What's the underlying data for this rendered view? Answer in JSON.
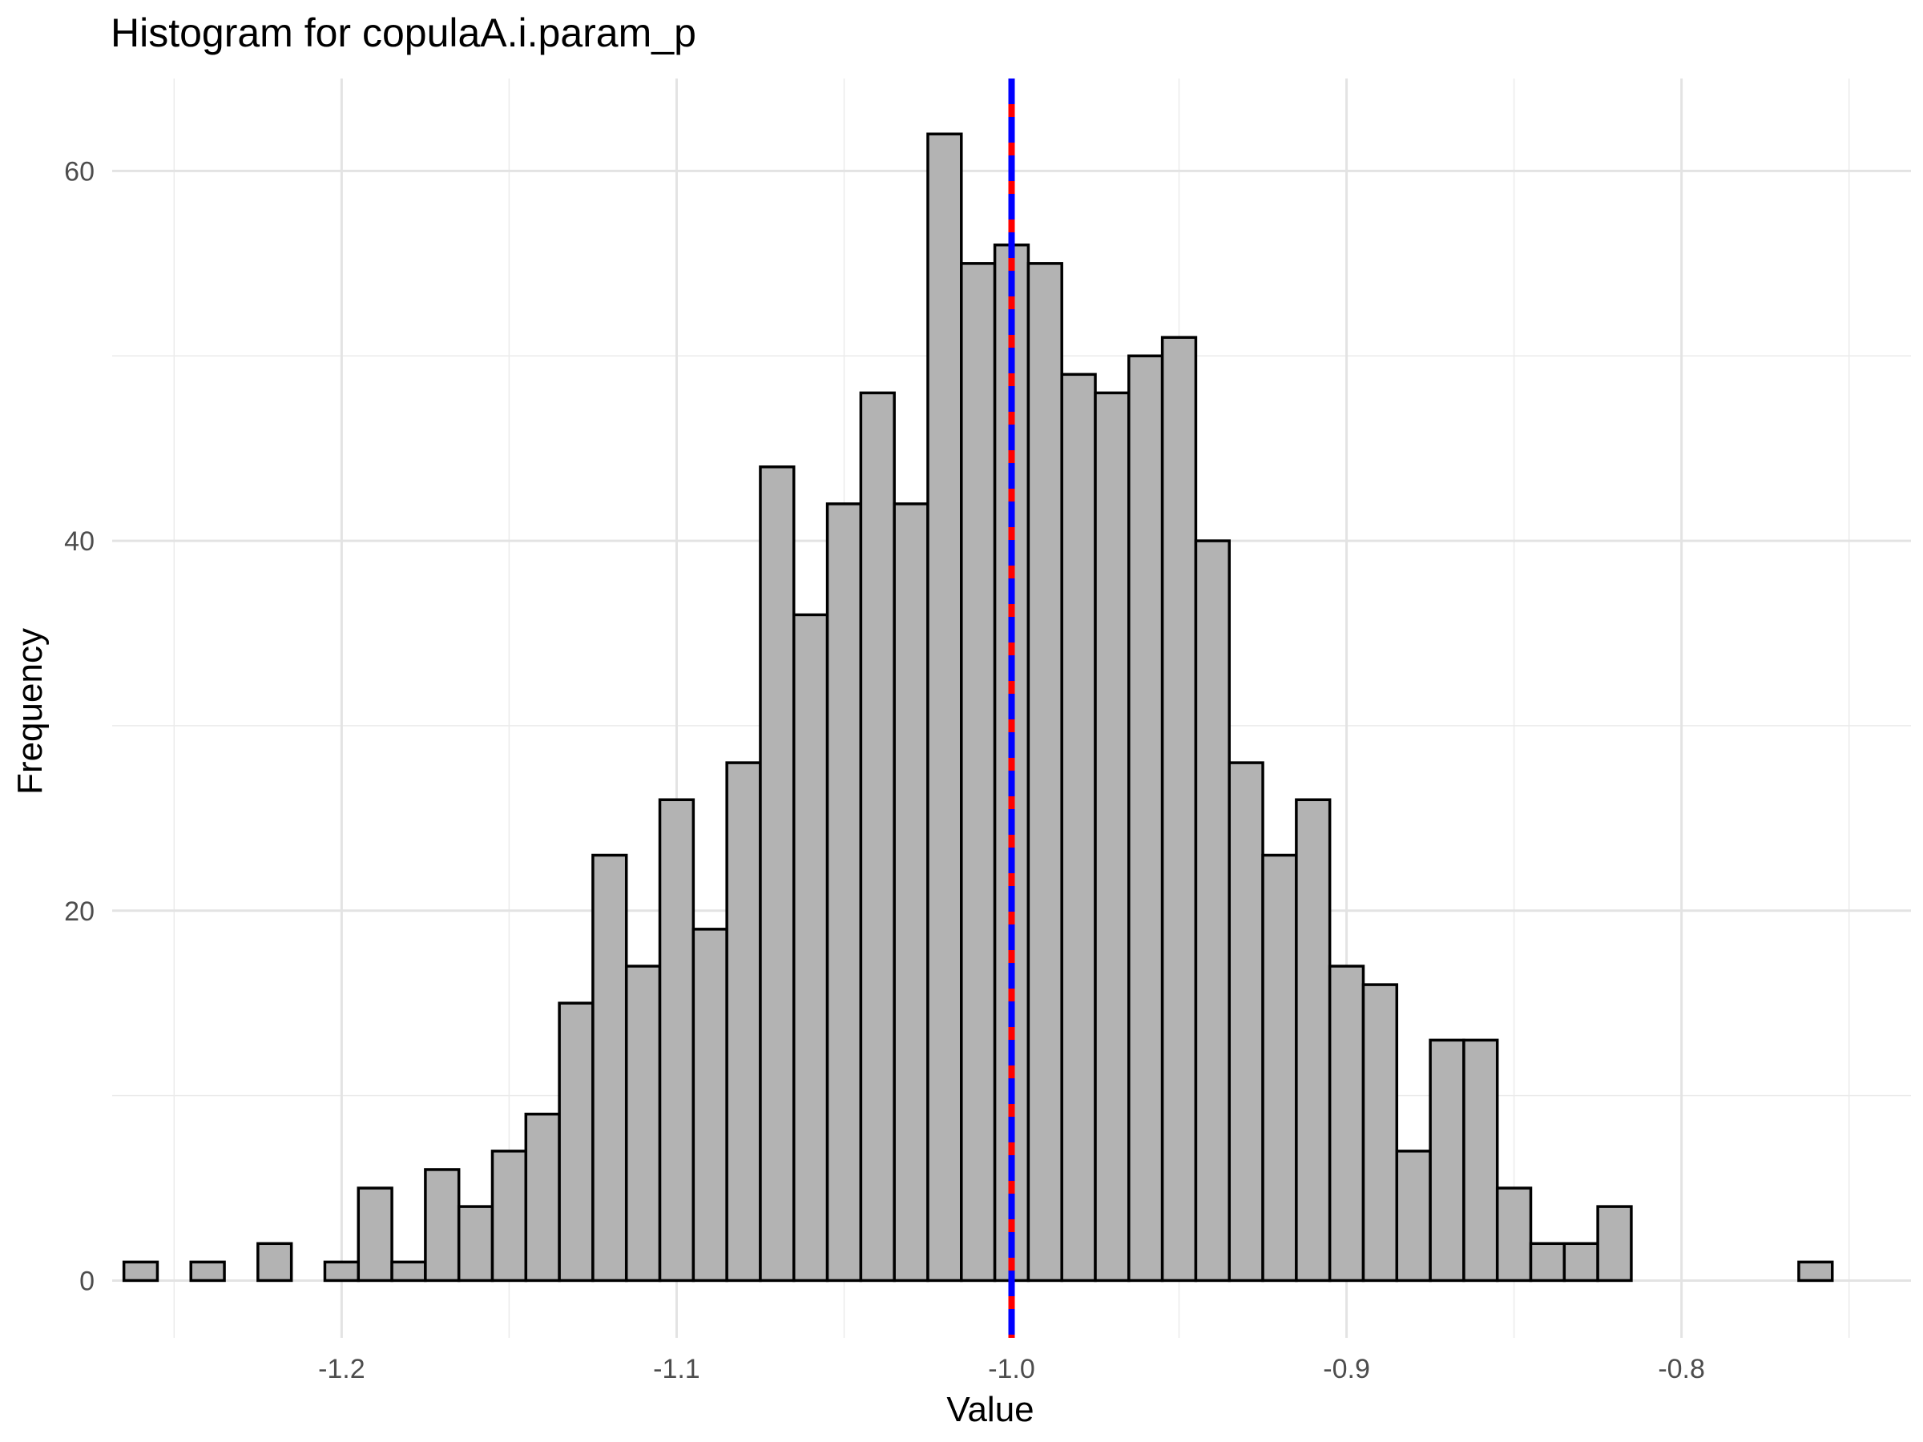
{
  "chart_data": {
    "type": "bar",
    "title": "Histogram for copulaA.i.param_p",
    "xlabel": "Value",
    "ylabel": "Frequency",
    "xlim": [
      -1.2685,
      -0.7315
    ],
    "ylim": [
      -3.1,
      65.0
    ],
    "bin_start": -1.265,
    "bin_width": 0.01,
    "values": [
      1,
      0,
      1,
      0,
      2,
      0,
      1,
      5,
      1,
      6,
      4,
      7,
      9,
      15,
      23,
      17,
      26,
      19,
      28,
      44,
      36,
      42,
      48,
      42,
      62,
      55,
      56,
      55,
      49,
      48,
      50,
      51,
      40,
      28,
      23,
      26,
      17,
      16,
      7,
      13,
      13,
      5,
      2,
      2,
      4,
      0,
      0,
      0,
      0,
      0,
      1
    ],
    "x_ticks": [
      -1.2,
      -1.1,
      -1.0,
      -0.9,
      -0.8
    ],
    "x_tick_labels": [
      "-1.2",
      "-1.1",
      "-1.0",
      "-0.9",
      "-0.8"
    ],
    "y_ticks": [
      0,
      20,
      40,
      60
    ],
    "y_tick_labels": [
      "0",
      "20",
      "40",
      "60"
    ],
    "reference_lines": [
      {
        "x": -1.0,
        "color": "#ff0000",
        "style": "solid"
      },
      {
        "x": -1.0,
        "color": "#0000ff",
        "style": "dashed"
      }
    ],
    "bar_fill": "#b3b3b3",
    "bar_stroke": "#000000",
    "grid": true
  }
}
